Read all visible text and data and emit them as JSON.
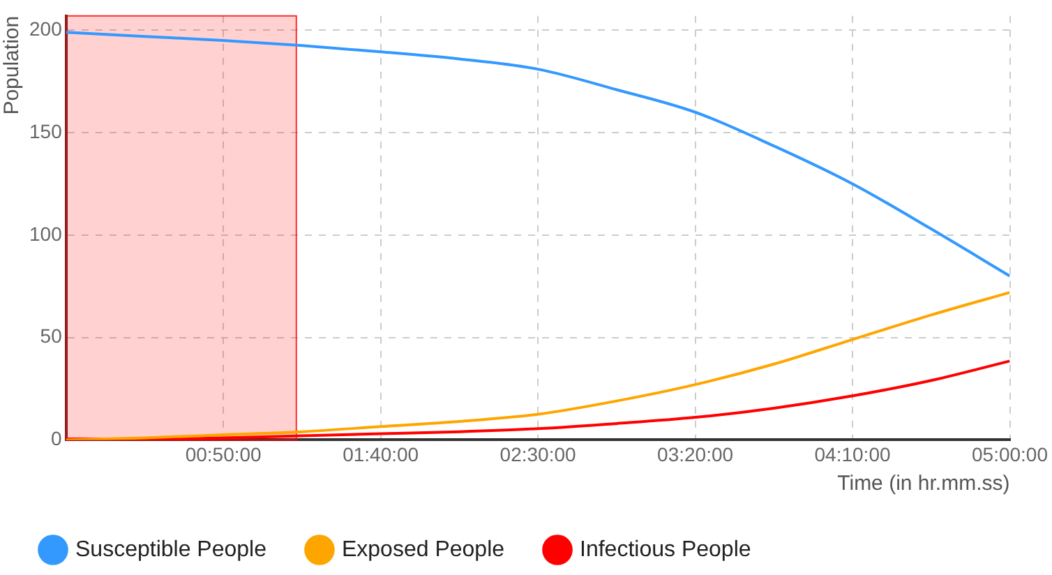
{
  "chart_data": {
    "type": "line",
    "xlabel": "Time (in hr.mm.ss)",
    "ylabel": "Population",
    "x": [
      0,
      0.4167,
      0.8333,
      1.25,
      1.6667,
      2.0833,
      2.5,
      2.9167,
      3.3333,
      3.75,
      4.1667,
      4.5833,
      5
    ],
    "series": [
      {
        "name": "Susceptible People",
        "color": "#3399ff",
        "values": [
          199,
          197,
          195,
          192.5,
          189.5,
          186,
          181,
          171,
          160,
          143.5,
          125,
          103,
          80
        ]
      },
      {
        "name": "Exposed People",
        "color": "#ffa500",
        "values": [
          0,
          1,
          2.5,
          4,
          6.5,
          9,
          12.5,
          19,
          27,
          37,
          49,
          61,
          72
        ]
      },
      {
        "name": "Infectious People",
        "color": "#ff0000",
        "values": [
          0.5,
          0.5,
          1,
          2,
          3,
          4,
          5.5,
          8,
          11,
          15.5,
          21.5,
          29,
          38.5
        ]
      }
    ],
    "xlim": [
      0,
      5
    ],
    "xticks": [
      {
        "value": 0.8333,
        "label": "00:50:00"
      },
      {
        "value": 1.6667,
        "label": "01:40:00"
      },
      {
        "value": 2.5,
        "label": "02:30:00"
      },
      {
        "value": 3.3333,
        "label": "03:20:00"
      },
      {
        "value": 4.1667,
        "label": "04:10:00"
      },
      {
        "value": 5,
        "label": "05:00:00"
      }
    ],
    "ylim": [
      0,
      207
    ],
    "yticks": [
      0,
      50,
      100,
      150,
      200
    ],
    "bands": [
      {
        "axis": "x",
        "from": 0,
        "to": 1.22,
        "color": "#ff0000"
      }
    ],
    "grid": true,
    "legend": "bottom",
    "marker": "none",
    "line_style": "solid"
  }
}
